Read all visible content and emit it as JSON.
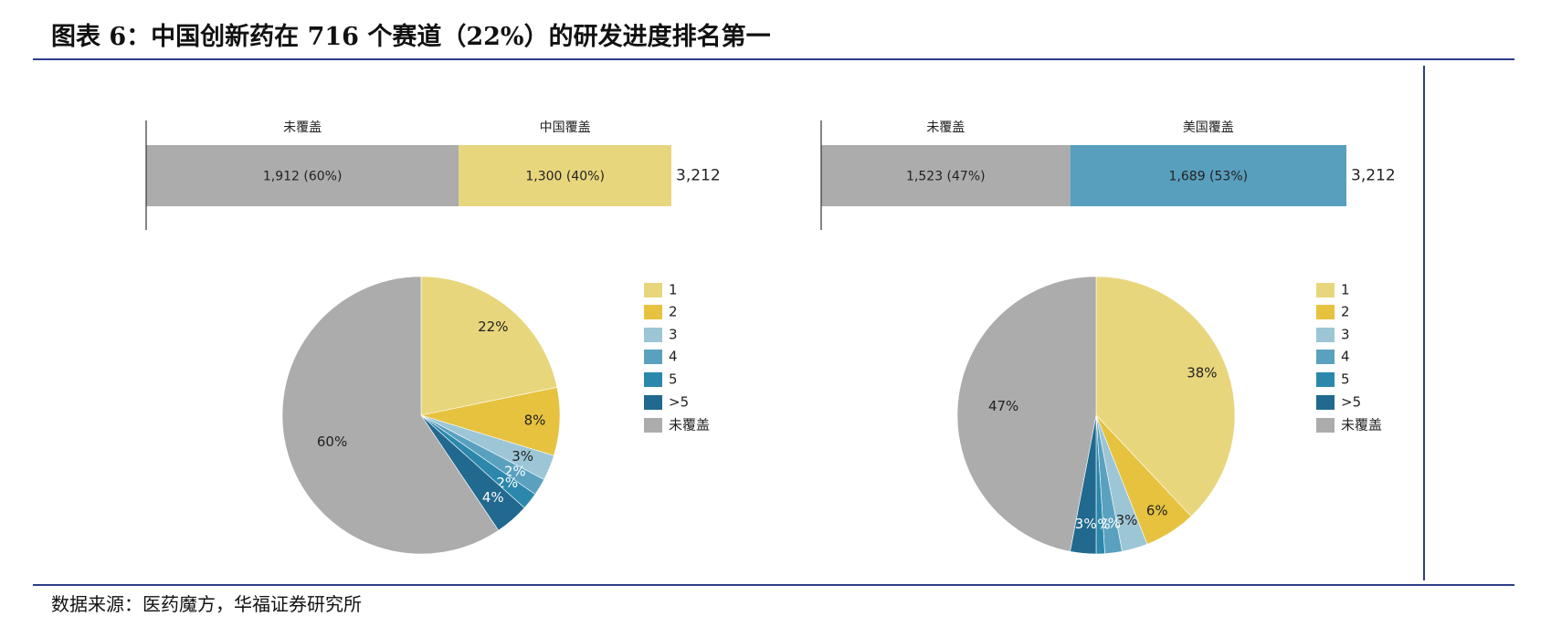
{
  "title": "图表 6：中国创新药在 716 个赛道（22%）的研发进度排名第一",
  "source": "数据来源：医药魔方，华福证券研究所",
  "colors": {
    "1": "#e8d67d",
    "2": "#e6c23f",
    "3": "#9cc6d6",
    "4": "#5aa1bf",
    "5": "#2b88ac",
    ">5": "#21698f",
    "未覆盖": "#acacac",
    "美国覆盖": "#589fbd",
    "中国覆盖": "#e8d67d"
  },
  "chart_data": [
    {
      "type": "bar",
      "orientation": "horizontal-stacked",
      "total_label": "3,212",
      "segments": [
        {
          "header": "未覆盖",
          "value": 1912,
          "label": "1,912 (60%)",
          "color_key": "未覆盖"
        },
        {
          "header": "中国覆盖",
          "value": 1300,
          "label": "1,300 (40%)",
          "color_key": "中国覆盖"
        }
      ]
    },
    {
      "type": "bar",
      "orientation": "horizontal-stacked",
      "total_label": "3,212",
      "segments": [
        {
          "header": "未覆盖",
          "value": 1523,
          "label": "1,523 (47%)",
          "color_key": "未覆盖"
        },
        {
          "header": "美国覆盖",
          "value": 1689,
          "label": "1,689 (53%)",
          "color_key": "美国覆盖"
        }
      ]
    },
    {
      "type": "pie",
      "slices": [
        {
          "name": "1",
          "value": 22,
          "label": "22%"
        },
        {
          "name": "2",
          "value": 8,
          "label": "8%"
        },
        {
          "name": "3",
          "value": 3,
          "label": "3%"
        },
        {
          "name": "4",
          "value": 2,
          "label": "2%"
        },
        {
          "name": "5",
          "value": 2,
          "label": "2%"
        },
        {
          "name": ">5",
          "value": 4,
          "label": "4%"
        },
        {
          "name": "未覆盖",
          "value": 60,
          "label": "60%"
        }
      ],
      "legend": [
        "1",
        "2",
        "3",
        "4",
        "5",
        ">5",
        "未覆盖"
      ]
    },
    {
      "type": "pie",
      "slices": [
        {
          "name": "1",
          "value": 38,
          "label": "38%"
        },
        {
          "name": "2",
          "value": 6,
          "label": "6%"
        },
        {
          "name": "3",
          "value": 3,
          "label": "3%"
        },
        {
          "name": "4",
          "value": 2,
          "label": "2%"
        },
        {
          "name": "5",
          "value": 1,
          "label": "1%"
        },
        {
          "name": ">5",
          "value": 3,
          "label": "3%"
        },
        {
          "name": "未覆盖",
          "value": 47,
          "label": "47%"
        }
      ],
      "legend": [
        "1",
        "2",
        "3",
        "4",
        "5",
        ">5",
        "未覆盖"
      ]
    }
  ]
}
